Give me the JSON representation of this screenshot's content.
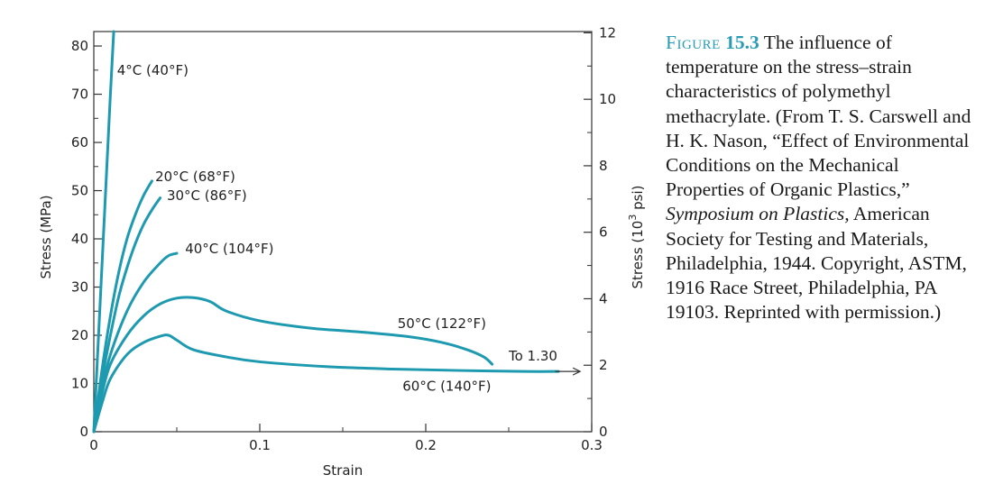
{
  "chart_data": {
    "type": "line",
    "title": "",
    "xlabel": "Strain",
    "ylabel": "Stress (MPa)",
    "y2label_main": "Stress (10",
    "y2label_sup": "3",
    "y2label_tail": " psi)",
    "xlim": [
      0,
      0.3
    ],
    "ylim": [
      0,
      83
    ],
    "y2lim": [
      0,
      12
    ],
    "x_ticks": [
      0,
      0.1,
      0.2,
      0.3
    ],
    "x_tick_labels": [
      "0",
      "0.1",
      "0.2",
      "0.3"
    ],
    "y_ticks": [
      0,
      10,
      20,
      30,
      40,
      50,
      60,
      70,
      80
    ],
    "y_tick_labels": [
      "0",
      "10",
      "20",
      "30",
      "40",
      "50",
      "60",
      "70",
      "80"
    ],
    "y2_ticks": [
      0,
      2,
      4,
      6,
      8,
      10,
      12
    ],
    "y2_tick_labels": [
      "0",
      "2",
      "4",
      "6",
      "8",
      "10",
      "12"
    ],
    "grid": false,
    "line_color": "#1e9ab0",
    "series": [
      {
        "name": "4°C (40°F)",
        "x": [
          0,
          0.005,
          0.01,
          0.012
        ],
        "y": [
          0,
          35,
          70,
          83
        ]
      },
      {
        "name": "20°C (68°F)",
        "x": [
          0,
          0.005,
          0.01,
          0.015,
          0.02,
          0.025,
          0.03,
          0.035
        ],
        "y": [
          0,
          13,
          24,
          33,
          40,
          45,
          49,
          52
        ]
      },
      {
        "name": "30°C (86°F)",
        "x": [
          0,
          0.005,
          0.01,
          0.015,
          0.02,
          0.025,
          0.03,
          0.035,
          0.04
        ],
        "y": [
          0,
          11,
          20,
          28,
          34,
          39,
          43,
          46,
          48.5
        ]
      },
      {
        "name": "40°C (104°F)",
        "x": [
          0,
          0.005,
          0.01,
          0.02,
          0.03,
          0.04,
          0.045,
          0.05
        ],
        "y": [
          0,
          9,
          16,
          25,
          31,
          35,
          36.5,
          37
        ]
      },
      {
        "name": "50°C (122°F)",
        "x": [
          0,
          0.005,
          0.01,
          0.02,
          0.03,
          0.04,
          0.05,
          0.06,
          0.07,
          0.08,
          0.1,
          0.13,
          0.16,
          0.19,
          0.21,
          0.225,
          0.235,
          0.24
        ],
        "y": [
          0,
          8,
          14,
          20,
          24,
          26.5,
          27.7,
          27.8,
          27,
          25,
          23,
          21.5,
          20.7,
          19.7,
          18.5,
          17,
          15.5,
          14
        ]
      },
      {
        "name": "60°C (140°F)",
        "x": [
          0,
          0.005,
          0.01,
          0.02,
          0.03,
          0.04,
          0.045,
          0.05,
          0.06,
          0.08,
          0.1,
          0.14,
          0.18,
          0.22,
          0.26,
          0.28
        ],
        "y": [
          0,
          6,
          11,
          16,
          18.5,
          19.8,
          20,
          19,
          17,
          15.5,
          14.5,
          13.5,
          13,
          12.7,
          12.5,
          12.5
        ]
      }
    ],
    "series_labels_display": [
      {
        "text": "4°C (40°F)",
        "x": 0.014,
        "y": 74
      },
      {
        "text": "20°C (68°F)",
        "x": 0.037,
        "y": 52
      },
      {
        "text": "30°C (86°F)",
        "x": 0.044,
        "y": 48
      },
      {
        "text": "40°C (104°F)",
        "x": 0.055,
        "y": 37
      },
      {
        "text": "50°C (122°F)",
        "x": 0.183,
        "y": 21.5
      },
      {
        "text": "60°C (140°F)",
        "x": 0.186,
        "y": 8.5
      }
    ],
    "annotation": {
      "text": "To 1.30",
      "x": 0.25,
      "y": 14.8,
      "arrow_x0": 0.278,
      "arrow_x1": 0.293,
      "arrow_y": 12.5
    }
  },
  "caption": {
    "figure_label": "Figure",
    "figure_number": "15.3",
    "text_main": "The influence of temperature on the stress–strain characteristics of polymethyl methacrylate. (From T. S. Carswell and H. K. Nason, “Effect of Environmental Conditions on the Mechanical Properties of Organic Plastics,”",
    "text_italic": "Symposium on Plastics,",
    "text_tail": "American Society for Testing and Materials, Philadelphia, 1944. Copyright, ASTM, 1916 Race Street, Philadelphia, PA 19103. Reprinted with permission.)"
  }
}
